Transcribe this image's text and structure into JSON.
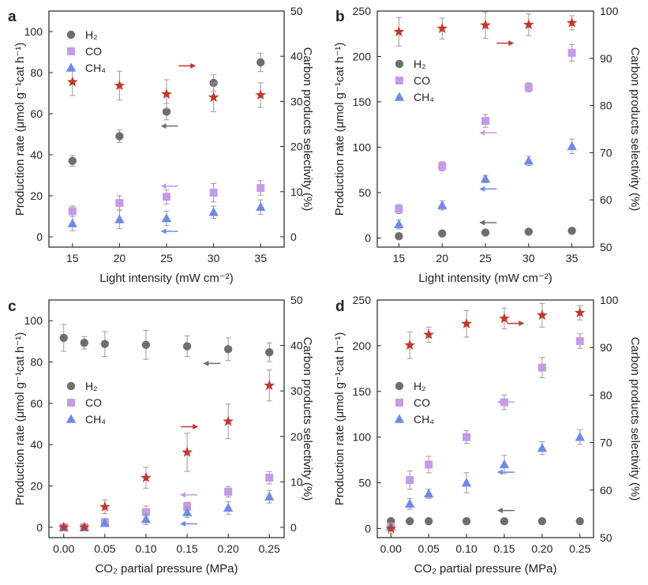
{
  "colors": {
    "H2": "#6e6e6e",
    "CO": "#c59ae6",
    "CH4": "#6f8ae6",
    "selectivity": "#c0392b",
    "errorbar": "#9a9a9a",
    "axis": "#222222"
  },
  "chart_data": [
    {
      "panel": "a",
      "type": "scatter",
      "xlabel": "Light intensity (mW cm⁻²)",
      "ylabel_left": "Production rate (μmol g⁻¹cat h⁻¹)",
      "ylabel_right": "Carbon products selectivity (%)",
      "x": [
        15,
        20,
        25,
        30,
        35
      ],
      "xlim": [
        12.5,
        37.5
      ],
      "ylim_left": [
        -5,
        110
      ],
      "ylim_right": [
        -2.27,
        50
      ],
      "xticks": [
        "15",
        "20",
        "25",
        "30",
        "35"
      ],
      "yticks_left": [
        "0",
        "20",
        "40",
        "60",
        "80",
        "100"
      ],
      "yticks_right": [
        "0",
        "10",
        "20",
        "30",
        "40",
        "50"
      ],
      "legend_position": "top-left",
      "series": [
        {
          "name": "H₂",
          "axis": "left",
          "marker": "circle",
          "values": [
            37,
            49,
            61,
            75,
            85
          ],
          "errors": [
            2.5,
            3,
            4,
            4,
            4.5
          ]
        },
        {
          "name": "CO",
          "axis": "left",
          "marker": "square",
          "values": [
            12.5,
            16.5,
            19.5,
            21.5,
            23.8
          ],
          "errors": [
            2.5,
            3.5,
            3.5,
            4.5,
            3.5
          ]
        },
        {
          "name": "CH₄",
          "axis": "left",
          "marker": "triangle",
          "values": [
            6.5,
            8.5,
            9,
            12,
            14.5
          ],
          "errors": [
            3.5,
            4.5,
            3.5,
            3,
            3.5
          ]
        },
        {
          "name": "Carbon products selectivity",
          "axis": "right",
          "marker": "star",
          "legend": false,
          "values": [
            34.3,
            33.5,
            31.6,
            30.9,
            31.4
          ],
          "errors": [
            3,
            3.2,
            3.2,
            3.2,
            2.7
          ]
        }
      ],
      "arrows": [
        {
          "direction": "right",
          "x": 27.2,
          "y": 83.3,
          "color": "selectivity"
        },
        {
          "direction": "left",
          "x": 25.3,
          "y": 54,
          "color": "H2"
        },
        {
          "direction": "left",
          "x": 25.3,
          "y": 24.7,
          "color": "CO"
        },
        {
          "direction": "left",
          "x": 25.3,
          "y": 2.7,
          "color": "CH4"
        }
      ]
    },
    {
      "panel": "b",
      "type": "scatter",
      "xlabel": "Light intensity (mW cm⁻²)",
      "ylabel_left": "Production rate (μmol g⁻¹cat h⁻¹)",
      "ylabel_right": "Carbon products selectivity (%)",
      "x": [
        15,
        20,
        25,
        30,
        35
      ],
      "xlim": [
        12.5,
        37.5
      ],
      "ylim_left": [
        -10,
        250
      ],
      "ylim_right": [
        50,
        100
      ],
      "xticks": [
        "15",
        "20",
        "25",
        "30",
        "35"
      ],
      "yticks_left": [
        "0",
        "50",
        "100",
        "150",
        "200",
        "250"
      ],
      "yticks_right": [
        "50",
        "60",
        "70",
        "80",
        "90",
        "100"
      ],
      "legend_position": "top-left",
      "series": [
        {
          "name": "H₂",
          "axis": "left",
          "marker": "circle",
          "values": [
            2,
            5,
            6,
            7,
            8
          ],
          "errors": [
            1,
            1,
            1,
            1,
            1
          ]
        },
        {
          "name": "CO",
          "axis": "left",
          "marker": "square",
          "values": [
            32,
            79,
            129,
            166,
            204
          ],
          "errors": [
            5,
            5,
            7,
            5,
            9
          ]
        },
        {
          "name": "CH₄",
          "axis": "left",
          "marker": "triangle",
          "values": [
            15,
            36,
            65,
            85,
            101
          ],
          "errors": [
            5,
            5,
            4,
            5,
            8
          ]
        },
        {
          "name": "Carbon products selectivity",
          "axis": "right",
          "marker": "star",
          "legend": false,
          "values": [
            95.6,
            96.3,
            97.0,
            97.1,
            97.5
          ],
          "errors": [
            3,
            2.2,
            2.8,
            2.3,
            1.5
          ]
        }
      ],
      "arrows": [
        {
          "direction": "right",
          "x": 27.3,
          "y": 214.7,
          "color": "selectivity"
        },
        {
          "direction": "left",
          "x": 25.3,
          "y": 116,
          "color": "CO"
        },
        {
          "direction": "left",
          "x": 25.3,
          "y": 54,
          "color": "CH4"
        },
        {
          "direction": "left",
          "x": 25.3,
          "y": 17,
          "color": "H2"
        }
      ]
    },
    {
      "panel": "c",
      "type": "scatter",
      "xlabel": "CO₂ partial pressure (MPa)",
      "ylabel_left": "Production rate (μmol g⁻¹cat h⁻¹)",
      "ylabel_right": "Carbon products selectivity (%)",
      "x": [
        0,
        0.025,
        0.05,
        0.1,
        0.15,
        0.2,
        0.25
      ],
      "xlim": [
        -0.018,
        0.268
      ],
      "ylim_left": [
        -5,
        110
      ],
      "ylim_right": [
        -2.27,
        50
      ],
      "xticks": [
        "0.00",
        "0.05",
        "0.10",
        "0.15",
        "0.20",
        "0.25"
      ],
      "yticks_left": [
        "0",
        "20",
        "40",
        "60",
        "80",
        "100"
      ],
      "yticks_right": [
        "0",
        "10",
        "20",
        "30",
        "40",
        "50"
      ],
      "legend_position": "middle-left",
      "series": [
        {
          "name": "H₂",
          "axis": "left",
          "marker": "circle",
          "values": [
            91.7,
            89.3,
            88.7,
            88.3,
            87.6,
            86.2,
            84.7
          ],
          "errors": [
            6.5,
            3,
            6,
            7,
            5,
            5.5,
            4.5
          ]
        },
        {
          "name": "CO",
          "axis": "left",
          "marker": "square",
          "values": [
            0,
            0,
            2.6,
            7.3,
            10.1,
            17.2,
            24
          ],
          "errors": [
            0.5,
            0.5,
            1.5,
            3,
            2,
            2.5,
            3
          ]
        },
        {
          "name": "CH₄",
          "axis": "left",
          "marker": "triangle",
          "values": [
            0,
            0,
            2,
            3.9,
            7.2,
            9.4,
            14.8
          ],
          "errors": [
            0.5,
            0.5,
            1.5,
            2.5,
            2.5,
            3,
            3
          ]
        },
        {
          "name": "Carbon products selectivity",
          "axis": "right",
          "marker": "star",
          "legend": false,
          "values": [
            0,
            0,
            4.5,
            10.9,
            16.5,
            23.3,
            31.2
          ],
          "errors": [
            0.5,
            0.5,
            1.5,
            2.3,
            4.2,
            3.8,
            3.4
          ]
        }
      ],
      "arrows": [
        {
          "direction": "right",
          "x": 0.153,
          "y": 48.7,
          "color": "selectivity"
        },
        {
          "direction": "left",
          "x": 0.18,
          "y": 79.3,
          "color": "H2"
        },
        {
          "direction": "left",
          "x": 0.152,
          "y": 15.7,
          "color": "CO"
        },
        {
          "direction": "left",
          "x": 0.152,
          "y": 1.7,
          "color": "CH4"
        }
      ]
    },
    {
      "panel": "d",
      "type": "scatter",
      "xlabel": "CO₂ partial pressure (MPa)",
      "ylabel_left": "Production rate (μmol g⁻¹cat h⁻¹)",
      "ylabel_right": "Carbon products selectivity (%)",
      "x": [
        0,
        0.025,
        0.05,
        0.1,
        0.15,
        0.2,
        0.25
      ],
      "xlim": [
        -0.018,
        0.268
      ],
      "ylim_left": [
        -10,
        250
      ],
      "ylim_right": [
        50,
        100
      ],
      "xticks": [
        "0.00",
        "0.05",
        "0.10",
        "0.15",
        "0.20",
        "0.25"
      ],
      "yticks_left": [
        "0",
        "50",
        "100",
        "150",
        "200",
        "250"
      ],
      "yticks_right": [
        "50",
        "60",
        "70",
        "80",
        "90",
        "100"
      ],
      "legend_position": "middle-left",
      "series": [
        {
          "name": "H₂",
          "axis": "left",
          "marker": "circle",
          "values": [
            8,
            8,
            8,
            8,
            8,
            8,
            8
          ],
          "errors": [
            1,
            1,
            1,
            1,
            1,
            1,
            1
          ]
        },
        {
          "name": "CO",
          "axis": "left",
          "marker": "square",
          "values": [
            2,
            53,
            70,
            100,
            138,
            176,
            205
          ],
          "errors": [
            3,
            10,
            9,
            7,
            8,
            11,
            8
          ]
        },
        {
          "name": "CH₄",
          "axis": "left",
          "marker": "triangle",
          "values": [
            2,
            27,
            38,
            50,
            70,
            88,
            100
          ],
          "errors": [
            3,
            6,
            5,
            11,
            10,
            7,
            8
          ]
        },
        {
          "name": "Carbon products selectivity",
          "axis": "right",
          "marker": "star",
          "legend": false,
          "values": [
            51.9,
            90.5,
            92.7,
            95.0,
            96.1,
            96.8,
            97.3
          ],
          "errors": [
            1,
            2.8,
            1.6,
            2.8,
            2.2,
            2.5,
            1.5
          ]
        }
      ],
      "arrows": [
        {
          "direction": "right",
          "x": 0.165,
          "y": 224.4,
          "color": "selectivity"
        },
        {
          "direction": "left",
          "x": 0.152,
          "y": 138.4,
          "color": "CO"
        },
        {
          "direction": "left",
          "x": 0.152,
          "y": 61.6,
          "color": "CH4"
        },
        {
          "direction": "left",
          "x": 0.152,
          "y": 19.7,
          "color": "H2"
        }
      ]
    }
  ]
}
